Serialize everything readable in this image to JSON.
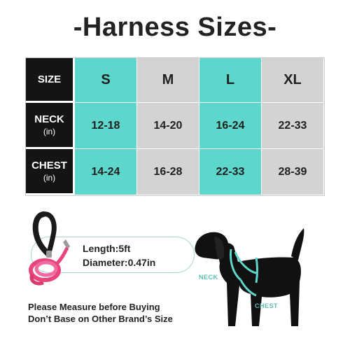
{
  "title": "-Harness Sizes-",
  "table": {
    "row_headers": [
      {
        "label": "SIZE",
        "unit": ""
      },
      {
        "label": "NECK",
        "unit": "(in)"
      },
      {
        "label": "CHEST",
        "unit": "(in)"
      }
    ],
    "sizes": [
      "S",
      "M",
      "L",
      "XL"
    ],
    "neck": [
      "12-18",
      "14-20",
      "16-24",
      "22-33"
    ],
    "chest": [
      "14-24",
      "16-28",
      "22-33",
      "28-39"
    ]
  },
  "leash": {
    "length": "Length:5ft",
    "diameter": "Diameter:0.47in"
  },
  "note": {
    "line1": "Please Measure before Buying",
    "line2": "Don’t Base on Other Brand’s Size"
  },
  "dog": {
    "neck_label": "NECK",
    "chest_label": "CHEST"
  },
  "colors": {
    "teal": "#5dd6cb",
    "gray": "#d3d3d3",
    "dark": "#141414",
    "leash_pink": "#e8457f"
  }
}
